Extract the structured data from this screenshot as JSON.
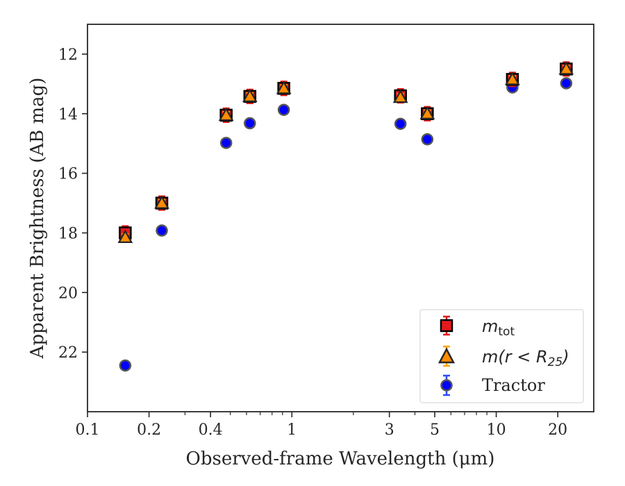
{
  "chart_data": {
    "type": "scatter",
    "title": "",
    "xlabel": "Observed-frame Wavelength (μm)",
    "ylabel": "Apparent Brightness (AB mag)",
    "xscale": "log",
    "xlim": [
      0.1,
      30
    ],
    "ylim": [
      24.0,
      11.0
    ],
    "y_inverted": true,
    "grid": false,
    "legend_position": "lower-right",
    "x_ticks": [
      0.1,
      0.2,
      0.4,
      1,
      3,
      5,
      10,
      20
    ],
    "x_tick_labels": [
      "0.1",
      "0.2",
      "0.4",
      "1",
      "3",
      "5",
      "10",
      "20"
    ],
    "y_ticks": [
      12,
      14,
      16,
      18,
      20,
      22
    ],
    "y_tick_labels": [
      "12",
      "14",
      "16",
      "18",
      "20",
      "22"
    ],
    "legend": {
      "mtot_base": "m",
      "mtot_sub": "tot",
      "mr_prefix": "m(r < R",
      "mr_sub": "25",
      "mr_suffix": ")",
      "tractor": "Tractor"
    },
    "series": [
      {
        "key": "mtot",
        "marker": "square",
        "color": "#e41a1c",
        "points": [
          {
            "x": 0.153,
            "y": 18.0
          },
          {
            "x": 0.231,
            "y": 17.0
          },
          {
            "x": 0.477,
            "y": 14.05
          },
          {
            "x": 0.623,
            "y": 13.42
          },
          {
            "x": 0.913,
            "y": 13.15
          },
          {
            "x": 3.4,
            "y": 13.4
          },
          {
            "x": 4.6,
            "y": 14.0
          },
          {
            "x": 12.0,
            "y": 12.85
          },
          {
            "x": 22.0,
            "y": 12.5
          }
        ]
      },
      {
        "key": "mr25",
        "marker": "triangle",
        "color": "#ff8c00",
        "points": [
          {
            "x": 0.153,
            "y": 18.15
          },
          {
            "x": 0.231,
            "y": 17.0
          },
          {
            "x": 0.477,
            "y": 14.05
          },
          {
            "x": 0.623,
            "y": 13.42
          },
          {
            "x": 0.913,
            "y": 13.15
          },
          {
            "x": 3.4,
            "y": 13.45
          },
          {
            "x": 4.6,
            "y": 14.0
          },
          {
            "x": 12.0,
            "y": 12.85
          },
          {
            "x": 22.0,
            "y": 12.5
          }
        ]
      },
      {
        "name": "Tractor",
        "key": "tractor",
        "marker": "circle",
        "color": "#0000ff",
        "points": [
          {
            "x": 0.153,
            "y": 22.45
          },
          {
            "x": 0.231,
            "y": 17.92
          },
          {
            "x": 0.477,
            "y": 14.98
          },
          {
            "x": 0.623,
            "y": 14.32
          },
          {
            "x": 0.913,
            "y": 13.87
          },
          {
            "x": 3.4,
            "y": 14.34
          },
          {
            "x": 4.6,
            "y": 14.86
          },
          {
            "x": 12.0,
            "y": 13.12
          },
          {
            "x": 22.0,
            "y": 12.98
          }
        ]
      }
    ]
  }
}
